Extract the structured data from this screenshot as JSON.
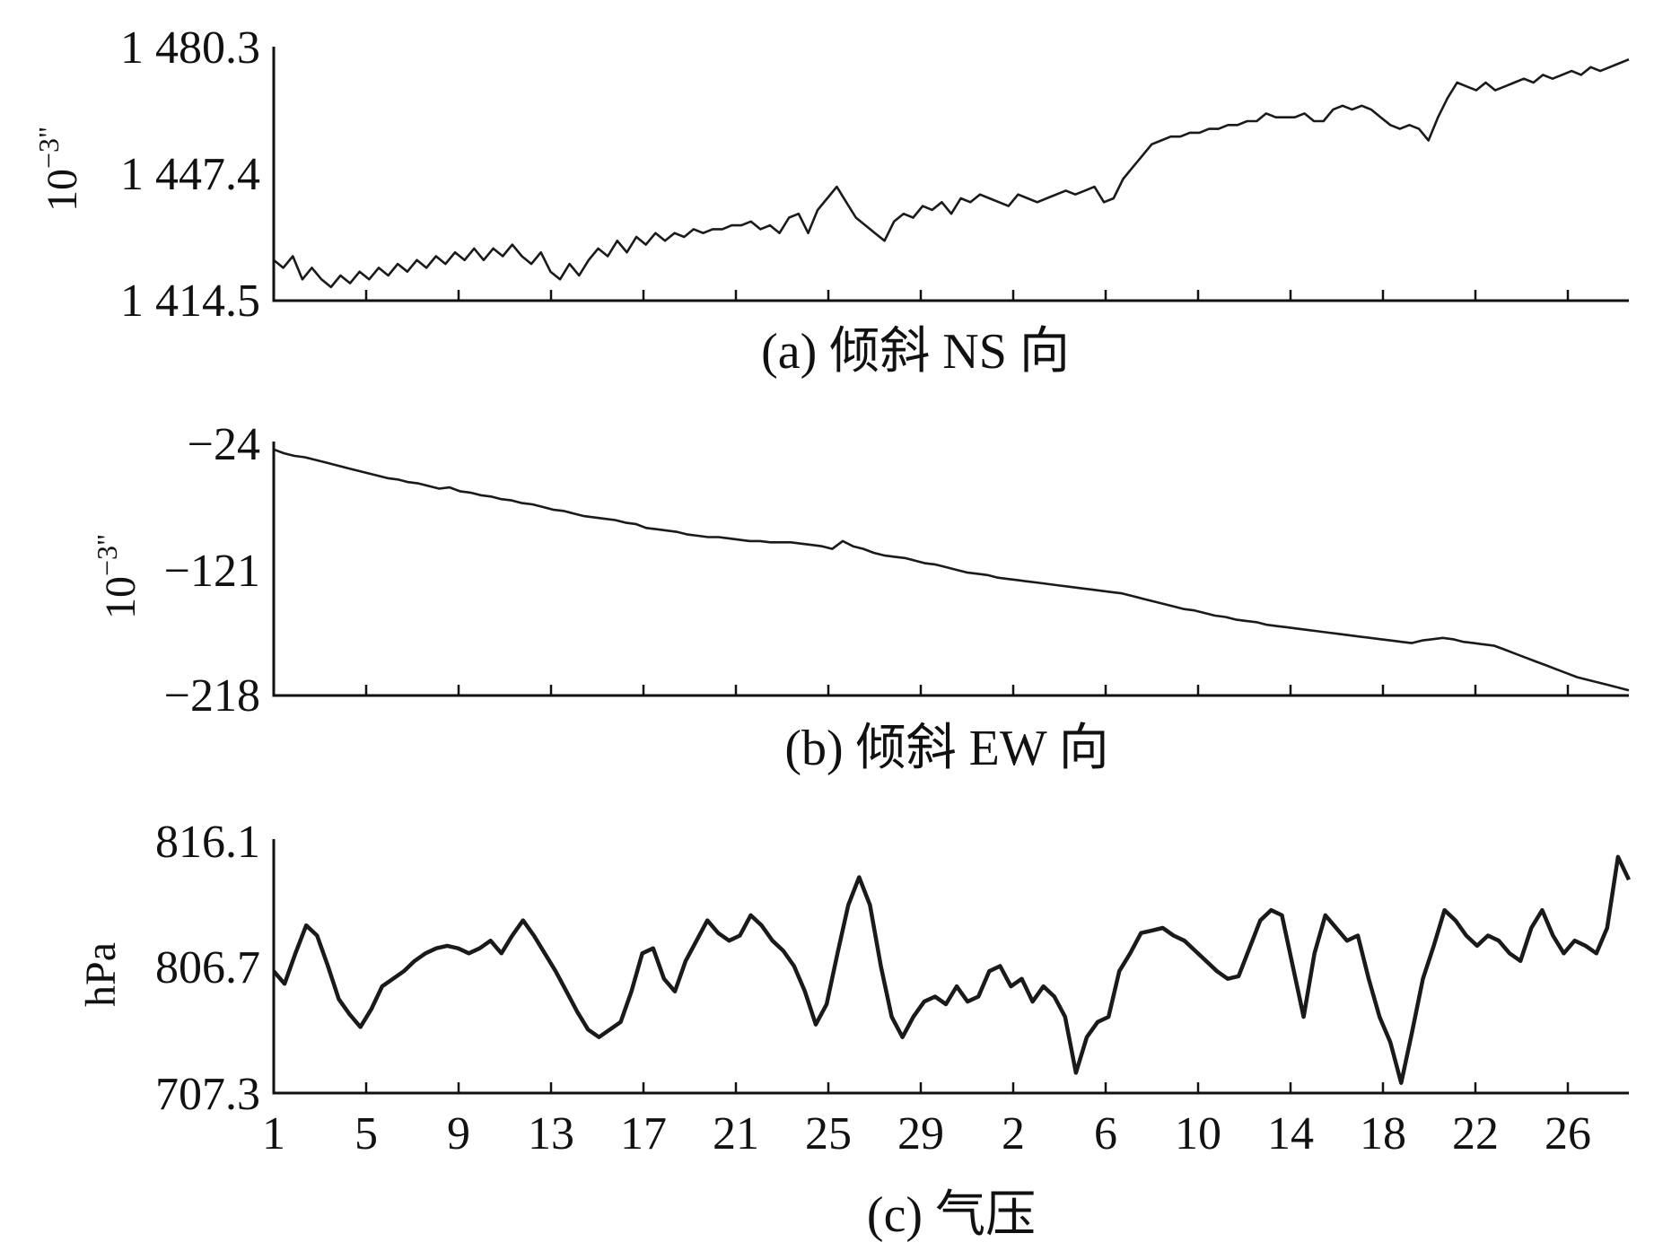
{
  "chart_data": [
    {
      "type": "line",
      "id": "a",
      "caption": "(a) 倾斜 NS 向",
      "ylabel": "10",
      "ylabel_exponent": "−3\"",
      "y_ticks": [
        "1 480.3",
        "1 447.4",
        "1 414.5"
      ],
      "ylim": [
        1414.5,
        1480.3
      ],
      "x_ticks_visible_labels": false,
      "series": [
        {
          "values": [
            1425,
            1423,
            1426,
            1420,
            1423,
            1420,
            1418,
            1421,
            1419,
            1422,
            1420,
            1423,
            1421,
            1424,
            1422,
            1425,
            1423,
            1426,
            1424,
            1427,
            1425,
            1428,
            1425,
            1428,
            1426,
            1429,
            1426,
            1424,
            1427,
            1422,
            1420,
            1424,
            1421,
            1425,
            1428,
            1426,
            1430,
            1427,
            1431,
            1429,
            1432,
            1430,
            1432,
            1431,
            1433,
            1432,
            1433,
            1433,
            1434,
            1434,
            1435,
            1433,
            1434,
            1432,
            1436,
            1437,
            1432,
            1438,
            1441,
            1444,
            1440,
            1436,
            1434,
            1432,
            1430,
            1435,
            1437,
            1436,
            1439,
            1438,
            1440,
            1437,
            1441,
            1440,
            1442,
            1441,
            1440,
            1439,
            1442,
            1441,
            1440,
            1441,
            1442,
            1443,
            1442,
            1443,
            1444,
            1440,
            1441,
            1446,
            1449,
            1452,
            1455,
            1456,
            1457,
            1457,
            1458,
            1458,
            1459,
            1459,
            1460,
            1460,
            1461,
            1461,
            1463,
            1462,
            1462,
            1462,
            1463,
            1461,
            1461,
            1464,
            1465,
            1464,
            1465,
            1464,
            1462,
            1460,
            1459,
            1460,
            1459,
            1456,
            1462,
            1467,
            1471,
            1470,
            1469,
            1471,
            1469,
            1470,
            1471,
            1472,
            1471,
            1473,
            1472,
            1473,
            1474,
            1473,
            1475,
            1474,
            1475,
            1476,
            1477
          ]
        }
      ]
    },
    {
      "type": "line",
      "id": "b",
      "caption": "(b) 倾斜 EW 向",
      "ylabel": "10",
      "ylabel_exponent": "−3\"",
      "y_ticks": [
        "−24",
        "−121",
        "−218"
      ],
      "ylim": [
        -218,
        -24
      ],
      "x_ticks_visible_labels": false,
      "series": [
        {
          "values": [
            -30,
            -33,
            -35,
            -36,
            -38,
            -40,
            -42,
            -44,
            -46,
            -48,
            -50,
            -52,
            -53,
            -55,
            -56,
            -58,
            -60,
            -59,
            -62,
            -63,
            -65,
            -66,
            -68,
            -69,
            -71,
            -72,
            -74,
            -76,
            -77,
            -79,
            -81,
            -82,
            -83,
            -84,
            -86,
            -87,
            -90,
            -91,
            -92,
            -93,
            -95,
            -96,
            -97,
            -97,
            -98,
            -99,
            -100,
            -100,
            -101,
            -101,
            -101,
            -102,
            -103,
            -104,
            -106,
            -100,
            -104,
            -106,
            -109,
            -111,
            -112,
            -113,
            -115,
            -117,
            -118,
            -120,
            -122,
            -124,
            -125,
            -126,
            -128,
            -129,
            -130,
            -131,
            -132,
            -133,
            -134,
            -135,
            -136,
            -137,
            -138,
            -139,
            -140,
            -142,
            -144,
            -146,
            -148,
            -150,
            -152,
            -153,
            -155,
            -157,
            -158,
            -160,
            -161,
            -162,
            -164,
            -165,
            -166,
            -167,
            -168,
            -169,
            -170,
            -171,
            -172,
            -173,
            -174,
            -175,
            -176,
            -177,
            -178,
            -176,
            -175,
            -174,
            -175,
            -177,
            -178,
            -179,
            -180,
            -183,
            -186,
            -189,
            -192,
            -195,
            -198,
            -201,
            -204,
            -206,
            -208,
            -210,
            -212,
            -214
          ]
        }
      ]
    },
    {
      "type": "line",
      "id": "c",
      "caption": "(c) 气压",
      "ylabel": "hPa",
      "y_ticks": [
        "816.1",
        "806.7",
        "707.3"
      ],
      "x_ticks": [
        "1",
        "5",
        "9",
        "13",
        "17",
        "21",
        "25",
        "29",
        "2",
        "6",
        "10",
        "14",
        "18",
        "22",
        "26"
      ],
      "series": [
        {
          "values": [
            0.48,
            0.43,
            0.55,
            0.66,
            0.62,
            0.5,
            0.37,
            0.31,
            0.26,
            0.33,
            0.42,
            0.45,
            0.48,
            0.52,
            0.55,
            0.57,
            0.58,
            0.57,
            0.55,
            0.57,
            0.6,
            0.55,
            0.62,
            0.68,
            0.62,
            0.55,
            0.48,
            0.4,
            0.32,
            0.25,
            0.22,
            0.25,
            0.28,
            0.4,
            0.55,
            0.57,
            0.45,
            0.4,
            0.52,
            0.6,
            0.68,
            0.63,
            0.6,
            0.62,
            0.7,
            0.66,
            0.6,
            0.56,
            0.5,
            0.4,
            0.27,
            0.35,
            0.55,
            0.74,
            0.85,
            0.74,
            0.5,
            0.3,
            0.22,
            0.3,
            0.36,
            0.38,
            0.35,
            0.42,
            0.36,
            0.38,
            0.48,
            0.5,
            0.42,
            0.45,
            0.36,
            0.42,
            0.38,
            0.3,
            0.08,
            0.22,
            0.28,
            0.3,
            0.48,
            0.55,
            0.63,
            0.64,
            0.65,
            0.62,
            0.6,
            0.56,
            0.52,
            0.48,
            0.45,
            0.46,
            0.57,
            0.68,
            0.72,
            0.7,
            0.5,
            0.3,
            0.55,
            0.7,
            0.65,
            0.6,
            0.62,
            0.45,
            0.3,
            0.2,
            0.04,
            0.24,
            0.45,
            0.58,
            0.72,
            0.68,
            0.62,
            0.58,
            0.62,
            0.6,
            0.55,
            0.52,
            0.65,
            0.72,
            0.62,
            0.55,
            0.6,
            0.58,
            0.55,
            0.65,
            0.93,
            0.84
          ]
        }
      ]
    }
  ]
}
